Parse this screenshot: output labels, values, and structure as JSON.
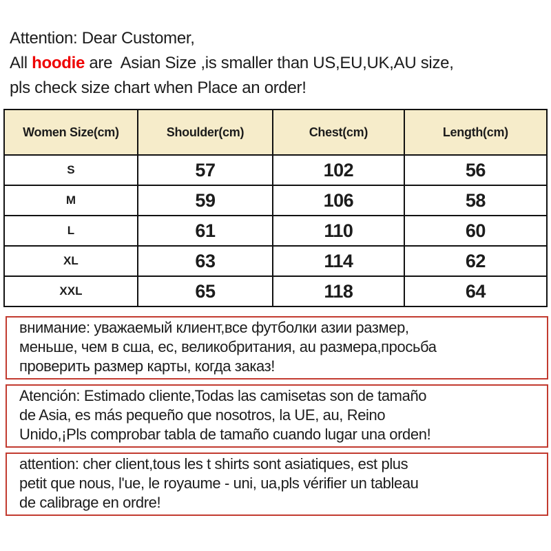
{
  "heading": {
    "line1": "Attention: Dear Customer,",
    "line2_prefix": "All ",
    "line2_highlight": "hoodie",
    "line2_suffix": " are  Asian Size ,is smaller than US,EU,UK,AU size,",
    "line3": "pls check size chart when Place an order!",
    "highlight_color": "#ee0000"
  },
  "size_table": {
    "header_bg": "#f6ecca",
    "border_color": "#111111",
    "columns": [
      "Women Size(cm)",
      "Shoulder(cm)",
      "Chest(cm)",
      "Length(cm)"
    ],
    "rows": [
      {
        "size": "S",
        "shoulder": "57",
        "chest": "102",
        "length": "56"
      },
      {
        "size": "M",
        "shoulder": "59",
        "chest": "106",
        "length": "58"
      },
      {
        "size": "L",
        "shoulder": "61",
        "chest": "110",
        "length": "60"
      },
      {
        "size": "XL",
        "shoulder": "63",
        "chest": "114",
        "length": "62"
      },
      {
        "size": "XXL",
        "shoulder": "65",
        "chest": "118",
        "length": "64"
      }
    ]
  },
  "notices": [
    {
      "lang": "russian",
      "border_color": "#c23a2f",
      "lines": [
        "внимание: уважаемый клиент,все футболки азии размер,",
        "меньше, чем в сша, ес, великобритания, au размера,просьба",
        "проверить размер карты, когда заказ!"
      ]
    },
    {
      "lang": "spanish",
      "border_color": "#c23a2f",
      "lines": [
        "Atención: Estimado cliente,Todas las camisetas son de tamaño",
        "de Asia, es más pequeño que nosotros, la UE, au, Reino",
        "Unido,¡Pls comprobar tabla de tamaño cuando lugar una orden!"
      ]
    },
    {
      "lang": "french",
      "border_color": "#c23a2f",
      "lines": [
        "attention: cher client,tous les t shirts sont asiatiques, est plus",
        "petit que nous, l'ue, le royaume - uni, ua,pls vérifier un tableau",
        "de calibrage en ordre!"
      ]
    }
  ]
}
